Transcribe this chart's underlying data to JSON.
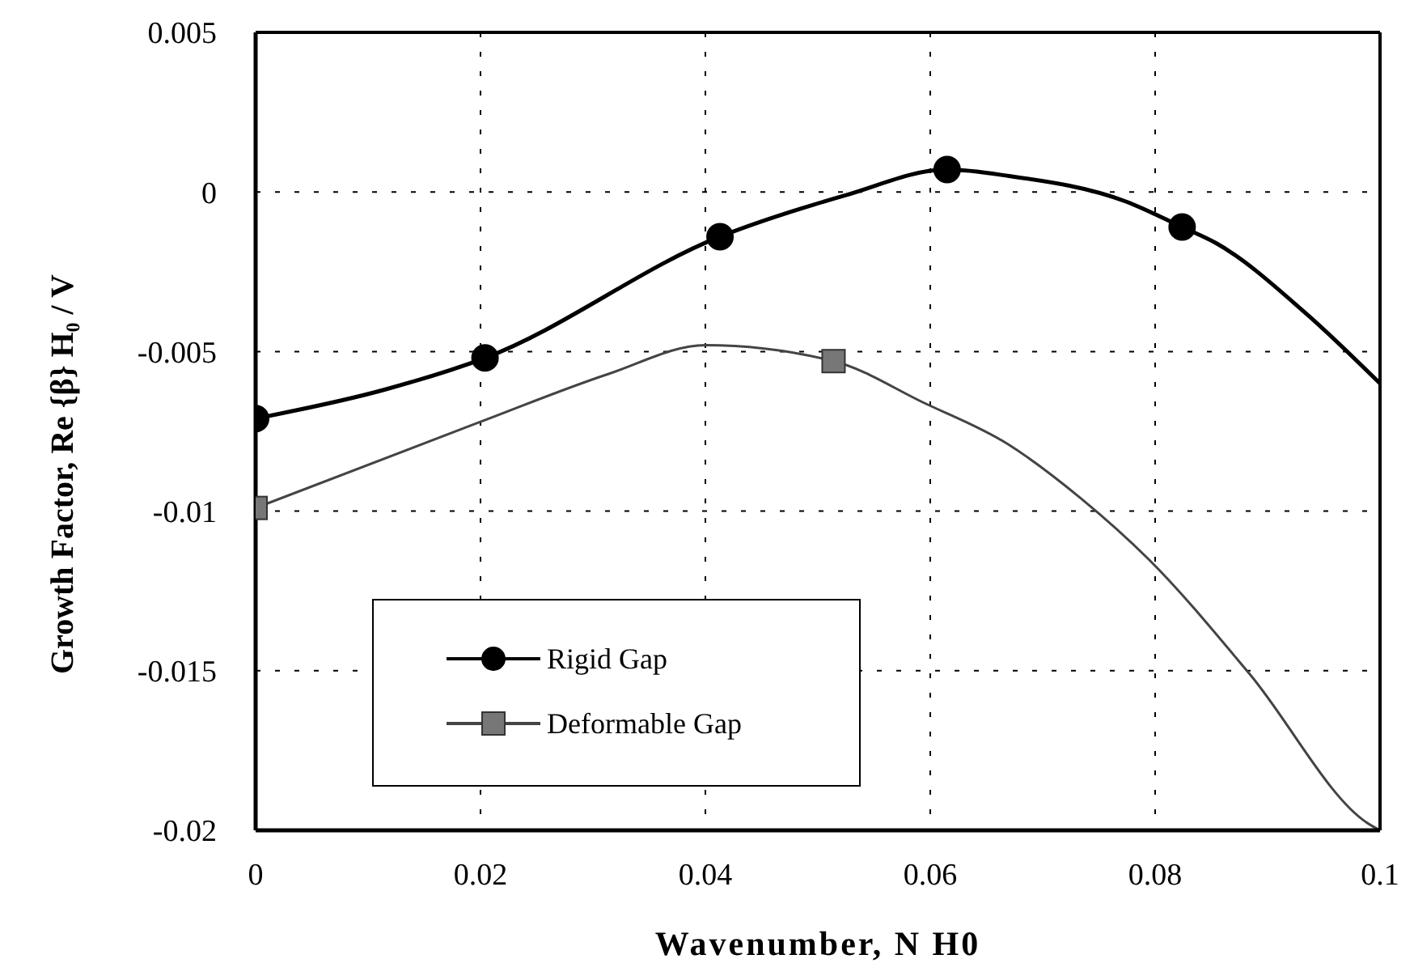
{
  "chart_data": {
    "type": "line",
    "xlabel": "Wavenumber, N H0",
    "ylabel": "Growth Factor, Re {β} H₀ / V",
    "xlim": [
      0,
      0.1
    ],
    "xticks": [
      0,
      0.02,
      0.04,
      0.06,
      0.08,
      0.1
    ],
    "ylim": [
      -0.02,
      0.005
    ],
    "yticks": [
      0.005,
      0,
      -0.005,
      -0.01,
      -0.015,
      -0.02
    ],
    "grid": true,
    "legend": "bottom left",
    "series": [
      {
        "name": "Rigid Gap",
        "color": "#000000",
        "line_style": "solid",
        "x": [
          0,
          0.0114,
          0.0204,
          0.0413,
          0.0525,
          0.0615,
          0.067,
          0.0774,
          0.0824,
          0.0854,
          0.0934,
          0.1
        ],
        "values": [
          -0.0071,
          -0.0062,
          -0.0052,
          -0.0014,
          -0.0001,
          0.0007,
          0.0005,
          -0.0003,
          -0.0011,
          -0.0016,
          -0.0038,
          -0.006
        ]
      },
      {
        "name": "Deformable Gap",
        "color": "#444444",
        "line_style": "solid",
        "x": [
          0,
          0.02,
          0.0314,
          0.04,
          0.0514,
          0.0594,
          0.0669,
          0.0734,
          0.0794,
          0.0884,
          0.099,
          0.1
        ],
        "values": [
          -0.0099,
          -0.0072,
          -0.0057,
          -0.0048,
          -0.0053,
          -0.0066,
          -0.0079,
          -0.0096,
          -0.0115,
          -0.0151,
          -0.0198,
          -0.02
        ]
      },
      {
        "type": "scatter",
        "color": "#000000",
        "marker": "circle",
        "x": [
          0,
          0.0204,
          0.0413,
          0.0615,
          0.0824
        ],
        "values": [
          -0.0071,
          -0.0052,
          -0.0014,
          0.0007,
          -0.0011
        ]
      },
      {
        "type": "scatter",
        "color": "#777777",
        "marker": "square",
        "x": [
          0,
          0.0514
        ],
        "values": [
          -0.0099,
          -0.0053
        ]
      }
    ]
  }
}
